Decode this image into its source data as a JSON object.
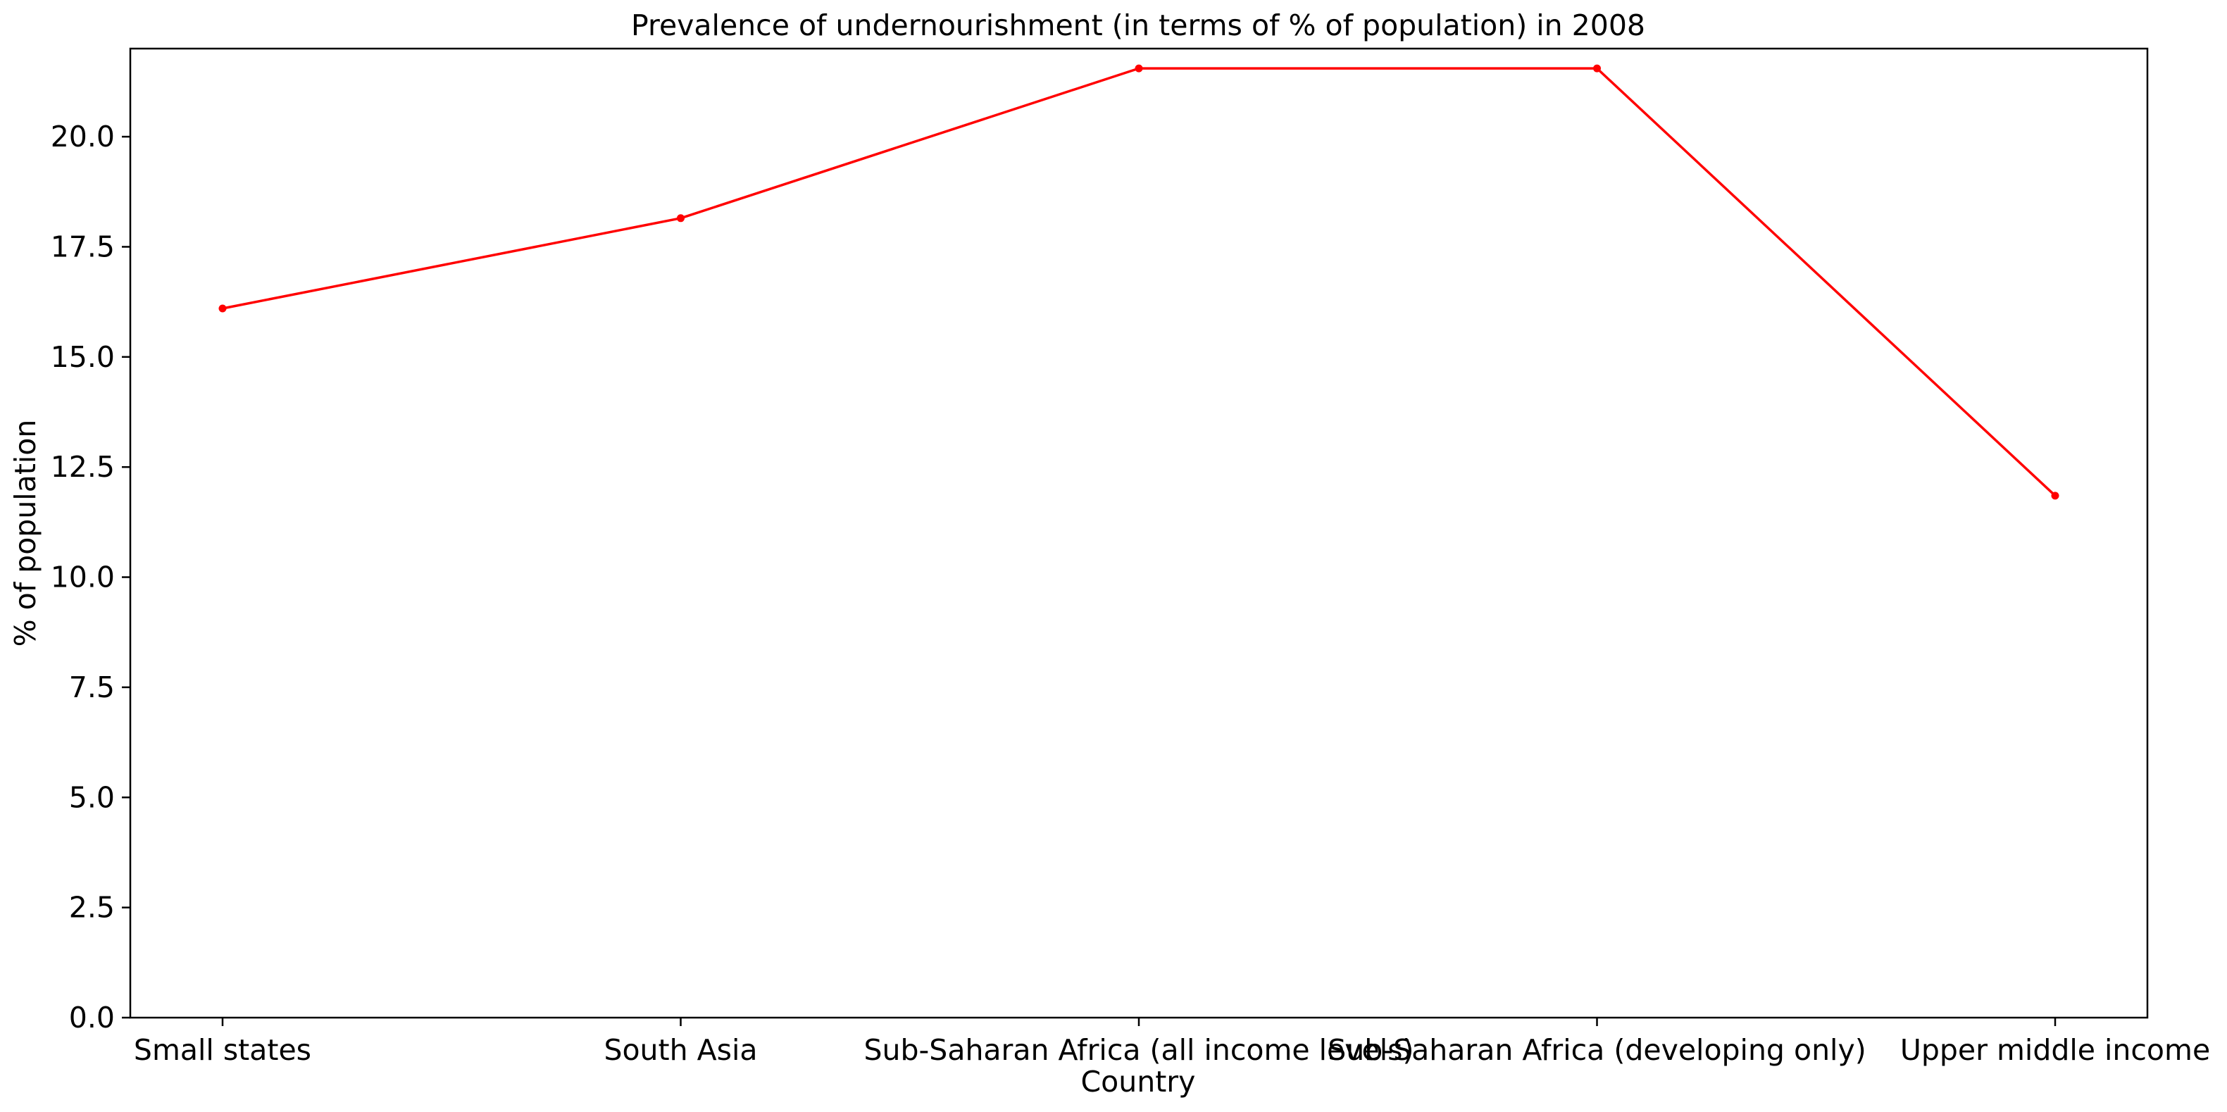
{
  "chart_data": {
    "type": "line",
    "title": "Prevalence of undernourishment (in terms of % of population) in 2008",
    "xlabel": "Country",
    "ylabel": "% of population",
    "categories": [
      "Small states",
      "South Asia",
      "Sub-Saharan Africa (all income levels)",
      "Sub-Saharan Africa (developing only)",
      "Upper middle income"
    ],
    "series": [
      {
        "values": [
          16.1,
          18.15,
          21.55,
          21.55,
          11.85
        ],
        "color": "#ff0000",
        "marker": "circle"
      }
    ],
    "ylim": [
      0,
      22
    ],
    "yticks": [
      0,
      2.5,
      5,
      7.5,
      10,
      12.5,
      15,
      17.5,
      20
    ],
    "ytick_labels": [
      "0.0",
      "2.5",
      "5.0",
      "7.5",
      "10.0",
      "12.5",
      "15.0",
      "17.5",
      "20.0"
    ],
    "grid": false,
    "legend": "none"
  }
}
